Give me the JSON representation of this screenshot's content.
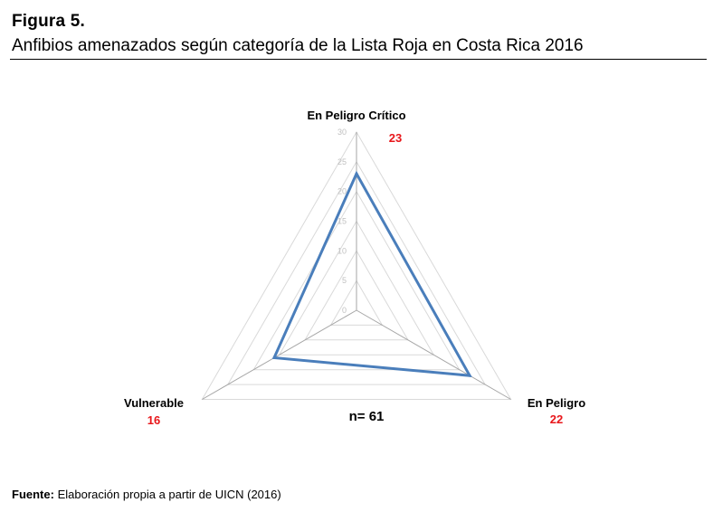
{
  "figure": {
    "label": "Figura 5.",
    "title": "Anfibios amenazados según categoría de la Lista Roja en Costa Rica 2016"
  },
  "chart_data": {
    "type": "radar",
    "categories": [
      "En Peligro Crítico",
      "En Peligro",
      "Vulnerable"
    ],
    "values": [
      23,
      22,
      16
    ],
    "value_labels": [
      "23",
      "22",
      "16"
    ],
    "scale_ticks": [
      0,
      5,
      10,
      15,
      20,
      25,
      30
    ],
    "rmax": 30,
    "annotation": "n= 61",
    "series_color": "#4a7ebb",
    "grid_color": "#d9d9d9",
    "axis_color": "#a6a6a6",
    "value_label_color": "#e8161a"
  },
  "source": {
    "label": "Fuente:",
    "text": " Elaboración propia a partir de UICN (2016)"
  }
}
